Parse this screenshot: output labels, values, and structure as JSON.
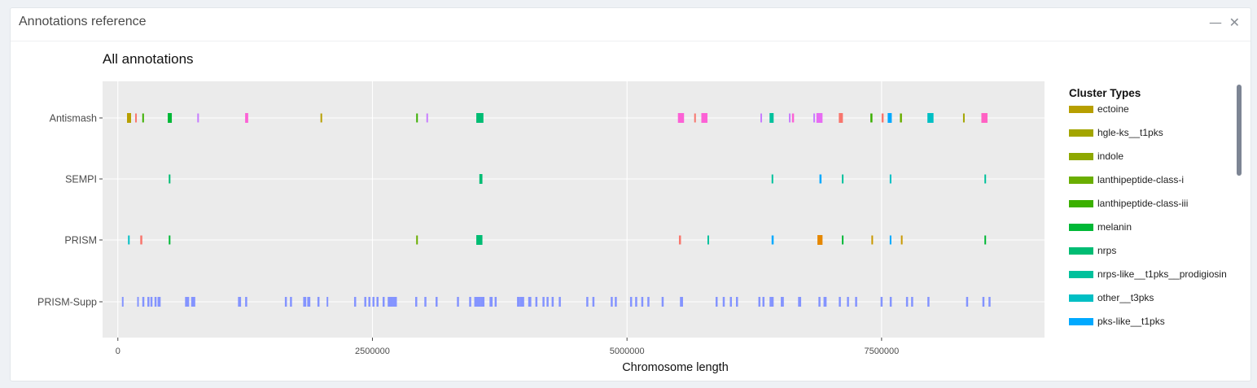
{
  "panel": {
    "title": "Annotations reference",
    "minimize_icon": "minimize-icon",
    "close_icon": "close-icon"
  },
  "chart_data": {
    "type": "scatter",
    "title": "All annotations",
    "xlabel": "Chromosome length",
    "ylabel": "",
    "xlim": [
      -150000,
      9100000
    ],
    "x_ticks": [
      0,
      2500000,
      5000000,
      7500000
    ],
    "x_tick_labels": [
      "0",
      "2500000",
      "5000000",
      "7500000"
    ],
    "y_categories": [
      "Antismash",
      "SEMPI",
      "PRISM",
      "PRISM-Supp"
    ],
    "grid": true,
    "legend_placement": "right",
    "legend": {
      "title": "Cluster Types",
      "items": [
        {
          "label": "ectoine",
          "color": "#b79f00"
        },
        {
          "label": "hgle-ks__t1pks",
          "color": "#a3a500"
        },
        {
          "label": "indole",
          "color": "#8ea800"
        },
        {
          "label": "lanthipeptide-class-i",
          "color": "#6aae00"
        },
        {
          "label": "lanthipeptide-class-iii",
          "color": "#3bb000"
        },
        {
          "label": "melanin",
          "color": "#00b836"
        },
        {
          "label": "nrps",
          "color": "#00bc73"
        },
        {
          "label": "nrps-like__t1pks__prodigiosin",
          "color": "#00c19c"
        },
        {
          "label": "other__t3pks",
          "color": "#00bfc4"
        },
        {
          "label": "pks-like__t1pks",
          "color": "#00a9ff"
        }
      ]
    },
    "series": [
      {
        "category": "Antismash",
        "segments": [
          {
            "start": 90000,
            "end": 130000,
            "color": "#b79f00"
          },
          {
            "start": 170000,
            "end": 185000,
            "color": "#f8766d"
          },
          {
            "start": 240000,
            "end": 255000,
            "color": "#3bb000"
          },
          {
            "start": 490000,
            "end": 530000,
            "color": "#00b836"
          },
          {
            "start": 780000,
            "end": 790000,
            "color": "#c77cff"
          },
          {
            "start": 1250000,
            "end": 1280000,
            "color": "#fc61d5"
          },
          {
            "start": 1990000,
            "end": 2000000,
            "color": "#b79f00"
          },
          {
            "start": 2930000,
            "end": 2940000,
            "color": "#3bb000"
          },
          {
            "start": 3030000,
            "end": 3040000,
            "color": "#c77cff"
          },
          {
            "start": 3520000,
            "end": 3590000,
            "color": "#00bc73"
          },
          {
            "start": 5500000,
            "end": 5560000,
            "color": "#fc61d5"
          },
          {
            "start": 5660000,
            "end": 5670000,
            "color": "#f8766d"
          },
          {
            "start": 5730000,
            "end": 5790000,
            "color": "#fc61d5"
          },
          {
            "start": 6310000,
            "end": 6320000,
            "color": "#c77cff"
          },
          {
            "start": 6400000,
            "end": 6440000,
            "color": "#00c19c"
          },
          {
            "start": 6590000,
            "end": 6600000,
            "color": "#c77cff"
          },
          {
            "start": 6620000,
            "end": 6640000,
            "color": "#fc61d5"
          },
          {
            "start": 6830000,
            "end": 6840000,
            "color": "#c77cff"
          },
          {
            "start": 6860000,
            "end": 6920000,
            "color": "#e76bf3"
          },
          {
            "start": 7080000,
            "end": 7120000,
            "color": "#f8766d"
          },
          {
            "start": 7390000,
            "end": 7410000,
            "color": "#3bb000"
          },
          {
            "start": 7500000,
            "end": 7520000,
            "color": "#f8766d"
          },
          {
            "start": 7560000,
            "end": 7600000,
            "color": "#00a9ff"
          },
          {
            "start": 7680000,
            "end": 7700000,
            "color": "#6aae00"
          },
          {
            "start": 7950000,
            "end": 8010000,
            "color": "#00bfc4"
          },
          {
            "start": 8300000,
            "end": 8310000,
            "color": "#a3a500"
          },
          {
            "start": 8480000,
            "end": 8540000,
            "color": "#ff61c3"
          }
        ]
      },
      {
        "category": "SEMPI",
        "segments": [
          {
            "start": 500000,
            "end": 510000,
            "color": "#00bc73"
          },
          {
            "start": 3550000,
            "end": 3580000,
            "color": "#00bc73"
          },
          {
            "start": 6420000,
            "end": 6430000,
            "color": "#00c19c"
          },
          {
            "start": 6890000,
            "end": 6910000,
            "color": "#00a9ff"
          },
          {
            "start": 7110000,
            "end": 7120000,
            "color": "#00c19c"
          },
          {
            "start": 7580000,
            "end": 7590000,
            "color": "#00bfc4"
          },
          {
            "start": 8510000,
            "end": 8520000,
            "color": "#00c19c"
          }
        ]
      },
      {
        "category": "PRISM",
        "segments": [
          {
            "start": 100000,
            "end": 110000,
            "color": "#00bfc4"
          },
          {
            "start": 220000,
            "end": 240000,
            "color": "#f8766d"
          },
          {
            "start": 500000,
            "end": 515000,
            "color": "#00b836"
          },
          {
            "start": 2930000,
            "end": 2935000,
            "color": "#6aae00"
          },
          {
            "start": 3520000,
            "end": 3580000,
            "color": "#00bc73"
          },
          {
            "start": 5510000,
            "end": 5530000,
            "color": "#f8766d"
          },
          {
            "start": 5790000,
            "end": 5800000,
            "color": "#00c19c"
          },
          {
            "start": 6420000,
            "end": 6440000,
            "color": "#00a9ff"
          },
          {
            "start": 6870000,
            "end": 6920000,
            "color": "#e58700"
          },
          {
            "start": 7110000,
            "end": 7120000,
            "color": "#00b836"
          },
          {
            "start": 7400000,
            "end": 7410000,
            "color": "#c99800"
          },
          {
            "start": 7580000,
            "end": 7590000,
            "color": "#00a9ff"
          },
          {
            "start": 7690000,
            "end": 7695000,
            "color": "#c99800"
          },
          {
            "start": 8510000,
            "end": 8520000,
            "color": "#00b836"
          }
        ]
      },
      {
        "category": "PRISM-Supp",
        "color": "#8494ff",
        "segments": [
          {
            "start": 40000,
            "end": 55000
          },
          {
            "start": 190000,
            "end": 205000
          },
          {
            "start": 240000,
            "end": 260000
          },
          {
            "start": 290000,
            "end": 310000
          },
          {
            "start": 320000,
            "end": 340000
          },
          {
            "start": 360000,
            "end": 380000
          },
          {
            "start": 390000,
            "end": 420000
          },
          {
            "start": 660000,
            "end": 700000
          },
          {
            "start": 720000,
            "end": 760000
          },
          {
            "start": 1180000,
            "end": 1210000
          },
          {
            "start": 1250000,
            "end": 1270000
          },
          {
            "start": 1640000,
            "end": 1660000
          },
          {
            "start": 1690000,
            "end": 1710000
          },
          {
            "start": 1820000,
            "end": 1850000
          },
          {
            "start": 1860000,
            "end": 1890000
          },
          {
            "start": 1960000,
            "end": 1980000
          },
          {
            "start": 2050000,
            "end": 2060000
          },
          {
            "start": 2320000,
            "end": 2340000
          },
          {
            "start": 2420000,
            "end": 2440000
          },
          {
            "start": 2460000,
            "end": 2480000
          },
          {
            "start": 2500000,
            "end": 2520000
          },
          {
            "start": 2540000,
            "end": 2560000
          },
          {
            "start": 2600000,
            "end": 2620000
          },
          {
            "start": 2650000,
            "end": 2700000
          },
          {
            "start": 2700000,
            "end": 2740000
          },
          {
            "start": 2920000,
            "end": 2940000
          },
          {
            "start": 3010000,
            "end": 3030000
          },
          {
            "start": 3120000,
            "end": 3140000
          },
          {
            "start": 3330000,
            "end": 3350000
          },
          {
            "start": 3450000,
            "end": 3470000
          },
          {
            "start": 3500000,
            "end": 3560000
          },
          {
            "start": 3560000,
            "end": 3600000
          },
          {
            "start": 3650000,
            "end": 3680000
          },
          {
            "start": 3700000,
            "end": 3720000
          },
          {
            "start": 3920000,
            "end": 3950000
          },
          {
            "start": 3950000,
            "end": 3990000
          },
          {
            "start": 4030000,
            "end": 4060000
          },
          {
            "start": 4100000,
            "end": 4120000
          },
          {
            "start": 4170000,
            "end": 4190000
          },
          {
            "start": 4210000,
            "end": 4230000
          },
          {
            "start": 4260000,
            "end": 4280000
          },
          {
            "start": 4330000,
            "end": 4350000
          },
          {
            "start": 4600000,
            "end": 4620000
          },
          {
            "start": 4660000,
            "end": 4680000
          },
          {
            "start": 4840000,
            "end": 4860000
          },
          {
            "start": 4880000,
            "end": 4900000
          },
          {
            "start": 5030000,
            "end": 5050000
          },
          {
            "start": 5080000,
            "end": 5100000
          },
          {
            "start": 5140000,
            "end": 5160000
          },
          {
            "start": 5200000,
            "end": 5220000
          },
          {
            "start": 5340000,
            "end": 5360000
          },
          {
            "start": 5520000,
            "end": 5550000
          },
          {
            "start": 5870000,
            "end": 5890000
          },
          {
            "start": 5940000,
            "end": 5960000
          },
          {
            "start": 6010000,
            "end": 6030000
          },
          {
            "start": 6070000,
            "end": 6090000
          },
          {
            "start": 6290000,
            "end": 6310000
          },
          {
            "start": 6330000,
            "end": 6350000
          },
          {
            "start": 6400000,
            "end": 6440000
          },
          {
            "start": 6510000,
            "end": 6540000
          },
          {
            "start": 6680000,
            "end": 6710000
          },
          {
            "start": 6880000,
            "end": 6900000
          },
          {
            "start": 6930000,
            "end": 6960000
          },
          {
            "start": 7080000,
            "end": 7100000
          },
          {
            "start": 7160000,
            "end": 7180000
          },
          {
            "start": 7240000,
            "end": 7260000
          },
          {
            "start": 7490000,
            "end": 7510000
          },
          {
            "start": 7580000,
            "end": 7600000
          },
          {
            "start": 7740000,
            "end": 7760000
          },
          {
            "start": 7790000,
            "end": 7810000
          },
          {
            "start": 7950000,
            "end": 7970000
          },
          {
            "start": 8330000,
            "end": 8350000
          },
          {
            "start": 8490000,
            "end": 8510000
          },
          {
            "start": 8550000,
            "end": 8570000
          }
        ]
      }
    ]
  }
}
